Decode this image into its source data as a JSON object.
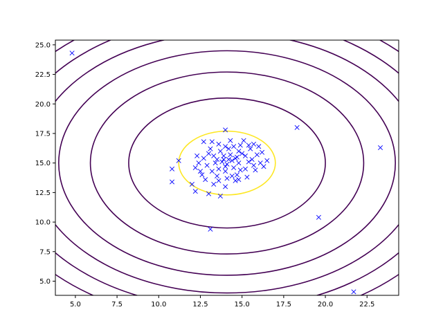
{
  "chart_data": {
    "type": "scatter",
    "title": "",
    "xlabel": "",
    "ylabel": "",
    "xlim": [
      3.8,
      24.4
    ],
    "ylim": [
      3.8,
      25.4
    ],
    "x_ticks": [
      "5.0",
      "7.5",
      "10.0",
      "12.5",
      "15.0",
      "17.5",
      "20.0",
      "22.5"
    ],
    "y_ticks": [
      "5.0",
      "7.5",
      "10.0",
      "12.5",
      "15.0",
      "17.5",
      "20.0",
      "22.5",
      "25.0"
    ],
    "grid": false,
    "legend": "none",
    "marker": "x",
    "marker_color": "#0000ff",
    "contour_colors": {
      "outer": "#440154",
      "inner": "#fde725"
    },
    "contours": {
      "center": [
        14.1,
        15.0
      ],
      "radii": [
        {
          "rx": 2.9,
          "ry": 2.7,
          "level": "inner"
        },
        {
          "rx": 5.9,
          "ry": 5.5,
          "level": "outer"
        },
        {
          "rx": 8.2,
          "ry": 7.7,
          "level": "outer"
        },
        {
          "rx": 10.1,
          "ry": 9.5,
          "level": "outer"
        },
        {
          "rx": 11.7,
          "ry": 11.0,
          "level": "outer"
        },
        {
          "rx": 13.1,
          "ry": 12.3,
          "level": "outer"
        },
        {
          "rx": 14.4,
          "ry": 13.5,
          "level": "outer"
        }
      ]
    },
    "series": [
      {
        "values": [
          [
            4.8,
            24.3
          ],
          [
            18.3,
            18.0
          ],
          [
            23.3,
            16.3
          ],
          [
            19.6,
            10.4
          ],
          [
            21.7,
            4.1
          ],
          [
            13.1,
            9.4
          ],
          [
            10.8,
            14.5
          ],
          [
            10.8,
            13.4
          ],
          [
            11.2,
            15.2
          ],
          [
            12.0,
            13.2
          ],
          [
            12.2,
            12.6
          ],
          [
            13.0,
            12.4
          ],
          [
            13.7,
            12.2
          ],
          [
            14.0,
            17.8
          ],
          [
            16.5,
            15.2
          ],
          [
            16.0,
            16.4
          ],
          [
            16.2,
            15.9
          ],
          [
            15.7,
            16.6
          ],
          [
            15.1,
            16.9
          ],
          [
            12.7,
            16.8
          ],
          [
            12.3,
            15.6
          ],
          [
            12.5,
            14.3
          ],
          [
            12.8,
            13.6
          ],
          [
            13.3,
            13.2
          ],
          [
            14.0,
            13.0
          ],
          [
            14.6,
            13.5
          ],
          [
            15.3,
            13.8
          ],
          [
            15.8,
            14.4
          ],
          [
            16.1,
            15.0
          ],
          [
            15.9,
            15.7
          ],
          [
            15.5,
            16.2
          ],
          [
            14.9,
            16.5
          ],
          [
            14.3,
            16.9
          ],
          [
            13.6,
            16.6
          ],
          [
            13.1,
            16.2
          ],
          [
            12.7,
            15.4
          ],
          [
            12.9,
            14.8
          ],
          [
            13.2,
            14.3
          ],
          [
            13.5,
            13.9
          ],
          [
            14.1,
            13.7
          ],
          [
            14.7,
            14.0
          ],
          [
            15.2,
            14.5
          ],
          [
            15.4,
            15.1
          ],
          [
            15.2,
            15.6
          ],
          [
            14.8,
            16.0
          ],
          [
            14.2,
            16.2
          ],
          [
            13.7,
            16.0
          ],
          [
            13.3,
            15.6
          ],
          [
            13.4,
            15.0
          ],
          [
            13.6,
            14.5
          ],
          [
            14.0,
            14.3
          ],
          [
            14.5,
            14.6
          ],
          [
            14.8,
            15.0
          ],
          [
            14.7,
            15.5
          ],
          [
            14.3,
            15.7
          ],
          [
            13.9,
            15.6
          ],
          [
            13.8,
            15.1
          ],
          [
            14.1,
            14.9
          ],
          [
            14.4,
            15.2
          ],
          [
            14.2,
            15.3
          ],
          [
            13.9,
            15.3
          ],
          [
            14.6,
            15.4
          ],
          [
            14.0,
            14.7
          ],
          [
            13.5,
            15.3
          ],
          [
            14.9,
            14.4
          ],
          [
            15.6,
            15.3
          ],
          [
            12.4,
            15.0
          ],
          [
            13.0,
            15.8
          ],
          [
            14.4,
            13.9
          ],
          [
            15.0,
            15.8
          ],
          [
            12.2,
            14.6
          ],
          [
            14.5,
            16.4
          ],
          [
            15.7,
            14.8
          ],
          [
            13.6,
            13.5
          ],
          [
            14.8,
            13.6
          ],
          [
            12.6,
            14.0
          ],
          [
            15.4,
            16.5
          ],
          [
            13.2,
            16.8
          ],
          [
            14.0,
            16.4
          ],
          [
            16.3,
            14.7
          ]
        ]
      }
    ]
  }
}
